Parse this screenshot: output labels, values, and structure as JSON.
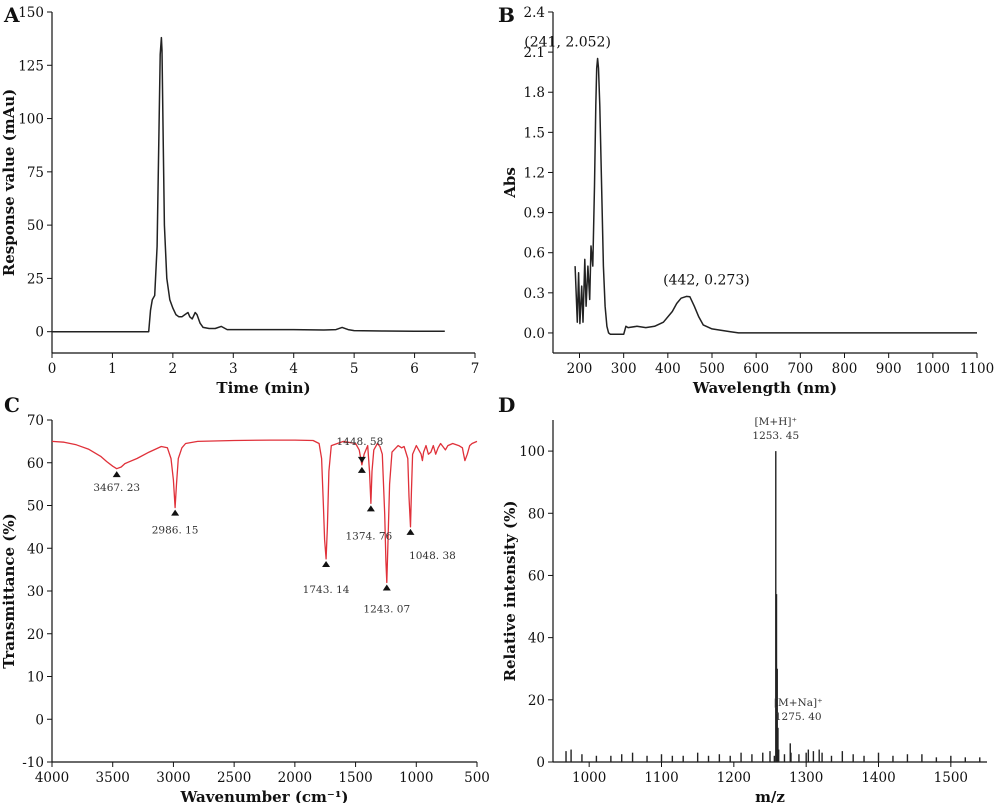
{
  "chart_data": [
    {
      "type": "line",
      "panel": "A",
      "title": "",
      "xlabel": "Time (min)",
      "ylabel": "Response value (mAu)",
      "xlim": [
        0,
        7
      ],
      "ylim": [
        -10,
        150
      ],
      "xticks": [
        0,
        1,
        2,
        3,
        4,
        5,
        6,
        7
      ],
      "yticks": [
        0,
        25,
        50,
        75,
        100,
        125,
        150
      ],
      "grid": false,
      "color": "#222222",
      "series": [
        {
          "x": [
            0,
            1.6,
            1.63,
            1.66,
            1.7,
            1.74,
            1.77,
            1.79,
            1.81,
            1.82,
            1.84,
            1.86,
            1.9,
            1.95,
            2.0,
            2.05,
            2.1,
            2.15,
            2.2,
            2.25,
            2.28,
            2.32,
            2.37,
            2.4,
            2.45,
            2.5,
            2.6,
            2.7,
            2.8,
            2.9,
            3.0,
            3.5,
            4.0,
            4.5,
            4.7,
            4.8,
            4.9,
            5.0,
            5.5,
            6.0,
            6.5
          ],
          "y": [
            0,
            0,
            10,
            15,
            17,
            40,
            95,
            130,
            138,
            132,
            90,
            50,
            25,
            15,
            11,
            8,
            7,
            7,
            8,
            9,
            7,
            6,
            9,
            8,
            4,
            2,
            1.5,
            1.5,
            2.5,
            1,
            1,
            1,
            1,
            0.8,
            1,
            2,
            1,
            0.5,
            0.3,
            0.2,
            0.2
          ]
        }
      ]
    },
    {
      "type": "line",
      "panel": "B",
      "title": "",
      "xlabel": "Wavelength (nm)",
      "ylabel": "Abs",
      "xlim": [
        140,
        1100
      ],
      "ylim": [
        -0.15,
        2.4
      ],
      "xticks": [
        200,
        300,
        400,
        500,
        600,
        700,
        800,
        900,
        1000,
        1100
      ],
      "yticks": [
        0.0,
        0.3,
        0.6,
        0.9,
        1.2,
        1.5,
        1.8,
        2.1,
        2.4
      ],
      "grid": false,
      "color": "#222222",
      "annotations": [
        {
          "text": "(241, 2.052)",
          "x": 241,
          "y": 2.052
        },
        {
          "text": "(442, 0.273)",
          "x": 442,
          "y": 0.273
        }
      ],
      "series": [
        {
          "x": [
            190,
            195,
            198,
            201,
            205,
            208,
            212,
            215,
            219,
            223,
            226,
            230,
            234,
            237,
            239,
            241,
            243,
            246,
            250,
            254,
            258,
            262,
            266,
            270,
            280,
            290,
            300,
            305,
            310,
            330,
            350,
            370,
            390,
            410,
            420,
            430,
            442,
            450,
            460,
            470,
            480,
            500,
            520,
            540,
            560,
            600,
            700,
            800,
            900,
            1000,
            1100
          ],
          "y": [
            0.5,
            0.08,
            0.45,
            0.07,
            0.35,
            0.08,
            0.55,
            0.2,
            0.5,
            0.25,
            0.65,
            0.5,
            1.1,
            1.7,
            1.98,
            2.052,
            1.98,
            1.7,
            1.1,
            0.5,
            0.2,
            0.05,
            0.0,
            -0.01,
            -0.01,
            -0.01,
            -0.01,
            0.05,
            0.04,
            0.05,
            0.04,
            0.05,
            0.08,
            0.16,
            0.22,
            0.26,
            0.273,
            0.27,
            0.2,
            0.12,
            0.06,
            0.03,
            0.02,
            0.01,
            0.0,
            0.0,
            0.0,
            0.0,
            0.0,
            0.0,
            0.0
          ]
        }
      ]
    },
    {
      "type": "line",
      "panel": "C",
      "title": "",
      "xlabel": "Wavenumber (cm⁻¹)",
      "ylabel": "Transmittance (%)",
      "xlim": [
        4000,
        500
      ],
      "ylim": [
        -10,
        70
      ],
      "xticks": [
        4000,
        3500,
        3000,
        2500,
        2000,
        1500,
        1000,
        500
      ],
      "yticks": [
        -10,
        0,
        10,
        20,
        30,
        40,
        50,
        60,
        70
      ],
      "grid": false,
      "color": "#e0313a",
      "annotations": [
        {
          "text": "3467. 23",
          "x": 3467,
          "y": 58.5
        },
        {
          "text": "2986. 15",
          "x": 2986,
          "y": 49.5
        },
        {
          "text": "1743. 14",
          "x": 1743,
          "y": 37.5
        },
        {
          "text": "1448. 58",
          "x": 1448,
          "y": 59.5
        },
        {
          "text": "1374. 76",
          "x": 1374,
          "y": 50.5
        },
        {
          "text": "1243. 07",
          "x": 1243,
          "y": 32
        },
        {
          "text": "1048. 38",
          "x": 1048,
          "y": 45
        }
      ],
      "series": [
        {
          "x": [
            4000,
            3900,
            3800,
            3700,
            3600,
            3550,
            3500,
            3467,
            3430,
            3400,
            3300,
            3200,
            3100,
            3050,
            3020,
            3000,
            2986,
            2975,
            2960,
            2930,
            2900,
            2800,
            2500,
            2200,
            2000,
            1850,
            1800,
            1780,
            1765,
            1755,
            1743,
            1732,
            1720,
            1700,
            1600,
            1500,
            1470,
            1448,
            1430,
            1400,
            1385,
            1374,
            1365,
            1350,
            1320,
            1300,
            1280,
            1260,
            1250,
            1243,
            1235,
            1220,
            1200,
            1150,
            1120,
            1100,
            1070,
            1060,
            1048,
            1040,
            1030,
            1000,
            960,
            950,
            940,
            920,
            900,
            880,
            860,
            840,
            820,
            800,
            760,
            740,
            700,
            650,
            620,
            610,
            600,
            580,
            560,
            540,
            500
          ],
          "y": [
            65,
            64.8,
            64.2,
            63.2,
            61.5,
            60.3,
            59.2,
            58.6,
            59,
            59.8,
            61,
            62.5,
            63.8,
            63.5,
            61,
            56,
            49.5,
            55,
            61,
            63.5,
            64.5,
            65,
            65.2,
            65.3,
            65.3,
            65.2,
            64.5,
            61,
            50,
            42,
            37.5,
            45,
            58,
            64,
            65,
            64.5,
            63,
            59.5,
            62,
            64,
            58,
            50.5,
            58,
            63,
            64.5,
            63.8,
            62,
            48,
            37,
            32,
            40,
            55,
            62.5,
            64,
            63.5,
            63.8,
            61,
            52,
            45,
            53,
            62,
            64,
            62,
            60.5,
            62.5,
            64,
            62,
            62.5,
            64,
            62,
            63.5,
            64.5,
            63,
            64,
            64.5,
            64,
            63.5,
            62,
            60.5,
            62,
            64,
            64.5,
            65
          ]
        }
      ]
    },
    {
      "type": "bar",
      "panel": "D",
      "title": "",
      "xlabel": "m/z",
      "ylabel": "Relative intensity (%)",
      "xlim": [
        950,
        1550
      ],
      "ylim": [
        0,
        110
      ],
      "xticks": [
        1000,
        1100,
        1200,
        1300,
        1400,
        1500
      ],
      "yticks": [
        0,
        20,
        40,
        60,
        80,
        100
      ],
      "grid": false,
      "color": "#222222",
      "annotations": [
        {
          "line1": "[M+H]⁺",
          "line2": "1253. 45",
          "x": 1258,
          "y": 100
        },
        {
          "line1": "[M+Na]⁺",
          "line2": "1275. 40",
          "x": 1278,
          "y": 7
        }
      ],
      "peaks": {
        "x": [
          1258,
          1259,
          1260,
          1261,
          1262,
          1278,
          1279,
          1256,
          1270,
          1300,
          1303,
          1310,
          1318,
          1322,
          1350,
          968,
          975,
          990,
          1010,
          1030,
          1045,
          1060,
          1080,
          1100,
          1115,
          1130,
          1150,
          1165,
          1180,
          1195,
          1210,
          1225,
          1240,
          1250,
          1290,
          1335,
          1365,
          1380,
          1400,
          1420,
          1440,
          1460,
          1480,
          1500,
          1520,
          1540
        ],
        "y": [
          100,
          54,
          30,
          11,
          4,
          6,
          3,
          2,
          2.5,
          3,
          4,
          3.5,
          4,
          3,
          3.5,
          3.5,
          4,
          2.5,
          2,
          2,
          2.5,
          3,
          2,
          2.5,
          2,
          2,
          3,
          2,
          2.5,
          2,
          3,
          2.5,
          3,
          3.5,
          2.5,
          2,
          2.5,
          2,
          3,
          2,
          2.5,
          2.5,
          1.5,
          2,
          1.5,
          1.5
        ]
      }
    }
  ],
  "panels": {
    "a": {
      "letter": "A"
    },
    "b": {
      "letter": "B"
    },
    "c": {
      "letter": "C"
    },
    "d": {
      "letter": "D"
    }
  }
}
